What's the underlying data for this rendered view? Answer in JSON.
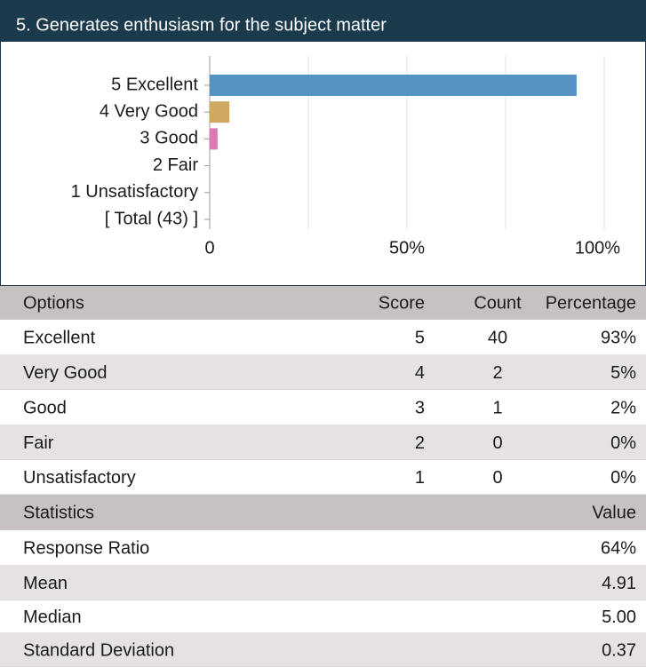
{
  "header": {
    "title": "5. Generates enthusiasm for the subject matter"
  },
  "chart_data": {
    "type": "bar",
    "orientation": "horizontal",
    "categories": [
      "5 Excellent",
      "4 Very Good",
      "3 Good",
      "2 Fair",
      "1 Unsatisfactory",
      "[ Total (43) ]"
    ],
    "values": [
      93,
      5,
      2,
      0,
      0,
      null
    ],
    "colors": [
      "#5592c4",
      "#cfa862",
      "#d97ab3",
      "#5592c4",
      "#5592c4",
      "#5592c4"
    ],
    "xlim": [
      0,
      100
    ],
    "xticks": [
      0,
      {
        "value": 50,
        "label": "50%"
      },
      {
        "value": 100,
        "label": "100%"
      }
    ],
    "minor_xticks": [
      25,
      75
    ],
    "grid": true
  },
  "table": {
    "columns": [
      "Options",
      "Score",
      "Count",
      "Percentage"
    ],
    "rows": [
      [
        "Excellent",
        "5",
        "40",
        "93%"
      ],
      [
        "Very Good",
        "4",
        "2",
        "5%"
      ],
      [
        "Good",
        "3",
        "1",
        "2%"
      ],
      [
        "Fair",
        "2",
        "0",
        "0%"
      ],
      [
        "Unsatisfactory",
        "1",
        "0",
        "0%"
      ]
    ]
  },
  "stats": {
    "columns": [
      "Statistics",
      "Value"
    ],
    "rows": [
      [
        "Response Ratio",
        "64%"
      ],
      [
        "Mean",
        "4.91"
      ],
      [
        "Median",
        "5.00"
      ],
      [
        "Standard Deviation",
        "0.37"
      ]
    ]
  }
}
